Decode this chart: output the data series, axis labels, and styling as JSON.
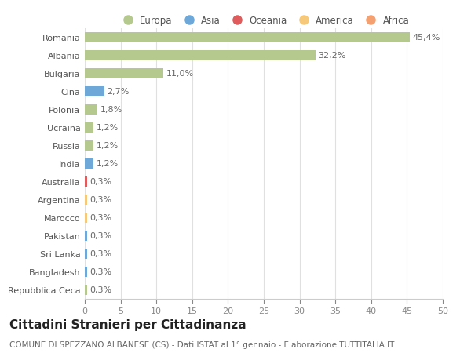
{
  "categories": [
    "Repubblica Ceca",
    "Bangladesh",
    "Sri Lanka",
    "Pakistan",
    "Marocco",
    "Argentina",
    "Australia",
    "India",
    "Russia",
    "Ucraina",
    "Polonia",
    "Cina",
    "Bulgaria",
    "Albania",
    "Romania"
  ],
  "values": [
    0.3,
    0.3,
    0.3,
    0.3,
    0.3,
    0.3,
    0.3,
    1.2,
    1.2,
    1.2,
    1.8,
    2.7,
    11.0,
    32.2,
    45.4
  ],
  "labels": [
    "0,3%",
    "0,3%",
    "0,3%",
    "0,3%",
    "0,3%",
    "0,3%",
    "0,3%",
    "1,2%",
    "1,2%",
    "1,2%",
    "1,8%",
    "2,7%",
    "11,0%",
    "32,2%",
    "45,4%"
  ],
  "colors": [
    "#b5c98e",
    "#6ea8d8",
    "#6ea8d8",
    "#6ea8d8",
    "#f5c87a",
    "#f5c87a",
    "#e05c5c",
    "#6ea8d8",
    "#b5c98e",
    "#b5c98e",
    "#b5c98e",
    "#6ea8d8",
    "#b5c98e",
    "#b5c98e",
    "#b5c98e"
  ],
  "legend_labels": [
    "Europa",
    "Asia",
    "Oceania",
    "America",
    "Africa"
  ],
  "legend_colors": [
    "#b5c98e",
    "#6ea8d8",
    "#e05c5c",
    "#f5c87a",
    "#f5a070"
  ],
  "title": "Cittadini Stranieri per Cittadinanza",
  "subtitle": "COMUNE DI SPEZZANO ALBANESE (CS) - Dati ISTAT al 1° gennaio - Elaborazione TUTTITALIA.IT",
  "xlim": [
    0,
    50
  ],
  "xticks": [
    0,
    5,
    10,
    15,
    20,
    25,
    30,
    35,
    40,
    45,
    50
  ],
  "bg_color": "#ffffff",
  "grid_color": "#e0e0e0",
  "bar_height": 0.55,
  "label_fontsize": 8,
  "tick_fontsize": 8,
  "title_fontsize": 11,
  "subtitle_fontsize": 7.5
}
